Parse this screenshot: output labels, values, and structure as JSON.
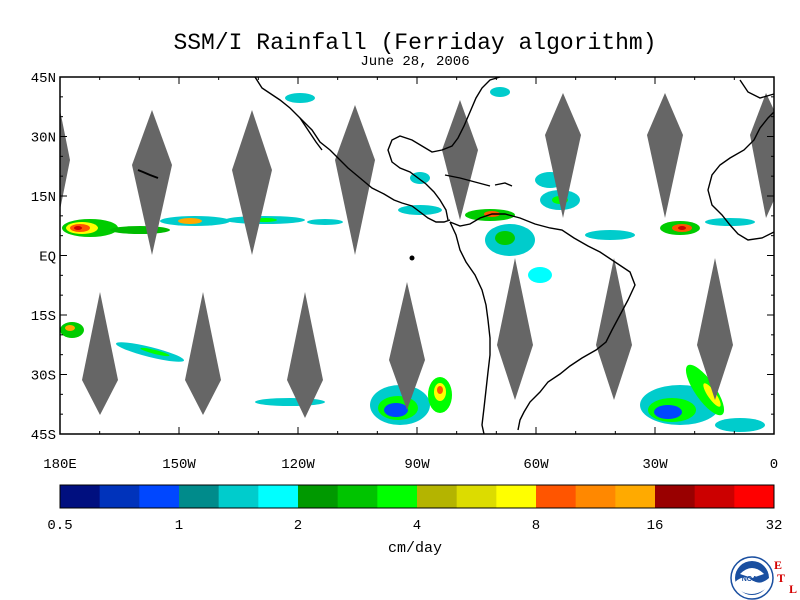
{
  "title": "SSM/I Rainfall (Ferriday algorithm)",
  "subtitle": "June 28, 2006",
  "lat_labels": [
    "45N",
    "30N",
    "15N",
    "EQ",
    "15S",
    "30S",
    "45S"
  ],
  "lon_labels": [
    "180E",
    "150W",
    "120W",
    "90W",
    "60W",
    "30W",
    "0"
  ],
  "colorbar": {
    "colors": [
      "#000f7f",
      "#0033bb",
      "#0047ff",
      "#008b8b",
      "#00cccc",
      "#00ffff",
      "#009900",
      "#00c400",
      "#00ff00",
      "#b4b400",
      "#dcdc00",
      "#ffff00",
      "#ff5500",
      "#ff8800",
      "#ffaa00",
      "#990000",
      "#cc0000",
      "#ff0000"
    ],
    "tick_labels": [
      "0.5",
      "1",
      "2",
      "4",
      "8",
      "16",
      "32"
    ],
    "units": "cm/day"
  },
  "logo": {
    "icon": "noaa-logo-icon",
    "text": "NOAA"
  },
  "etl": {
    "e": "E",
    "t": "T",
    "l": "L"
  },
  "colors": {
    "swath_gap": "#666666",
    "coast": "#000000",
    "frame": "#000000"
  }
}
